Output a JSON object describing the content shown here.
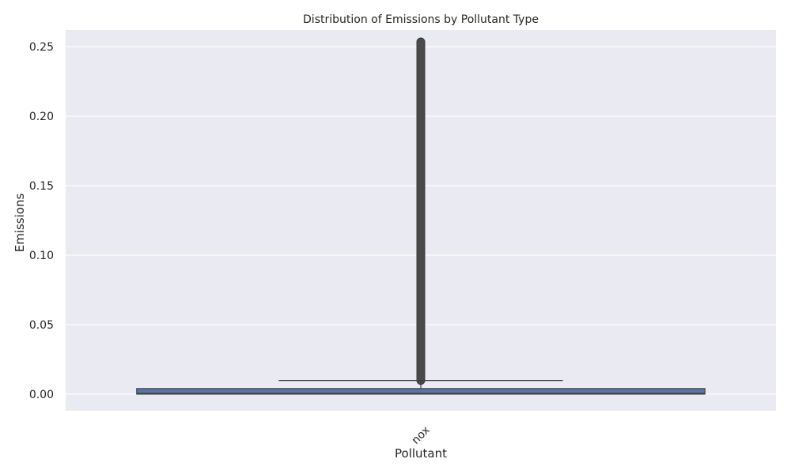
{
  "chart_data": {
    "type": "box",
    "title": "Distribution of Emissions by Pollutant Type",
    "xlabel": "Pollutant",
    "ylabel": "Emissions",
    "categories": [
      "nox"
    ],
    "ylim": [
      -0.012,
      0.262
    ],
    "yticks": [
      0.0,
      0.05,
      0.1,
      0.15,
      0.2,
      0.25
    ],
    "ytick_labels": [
      "0.00",
      "0.05",
      "0.10",
      "0.15",
      "0.20",
      "0.25"
    ],
    "grid": true,
    "boxes": [
      {
        "category": "nox",
        "q1": 0.0,
        "median": 0.0005,
        "q3": 0.004,
        "whisker_low": 0.0,
        "whisker_high": 0.0098,
        "outliers_min": 0.0098,
        "outliers_max": 0.2535
      }
    ],
    "colors": {
      "background": "#eaeaf2",
      "grid": "#ffffff",
      "box_fill": "#5975a4",
      "box_edge": "#3f3f3f",
      "outlier": "#4a4a4a"
    }
  }
}
